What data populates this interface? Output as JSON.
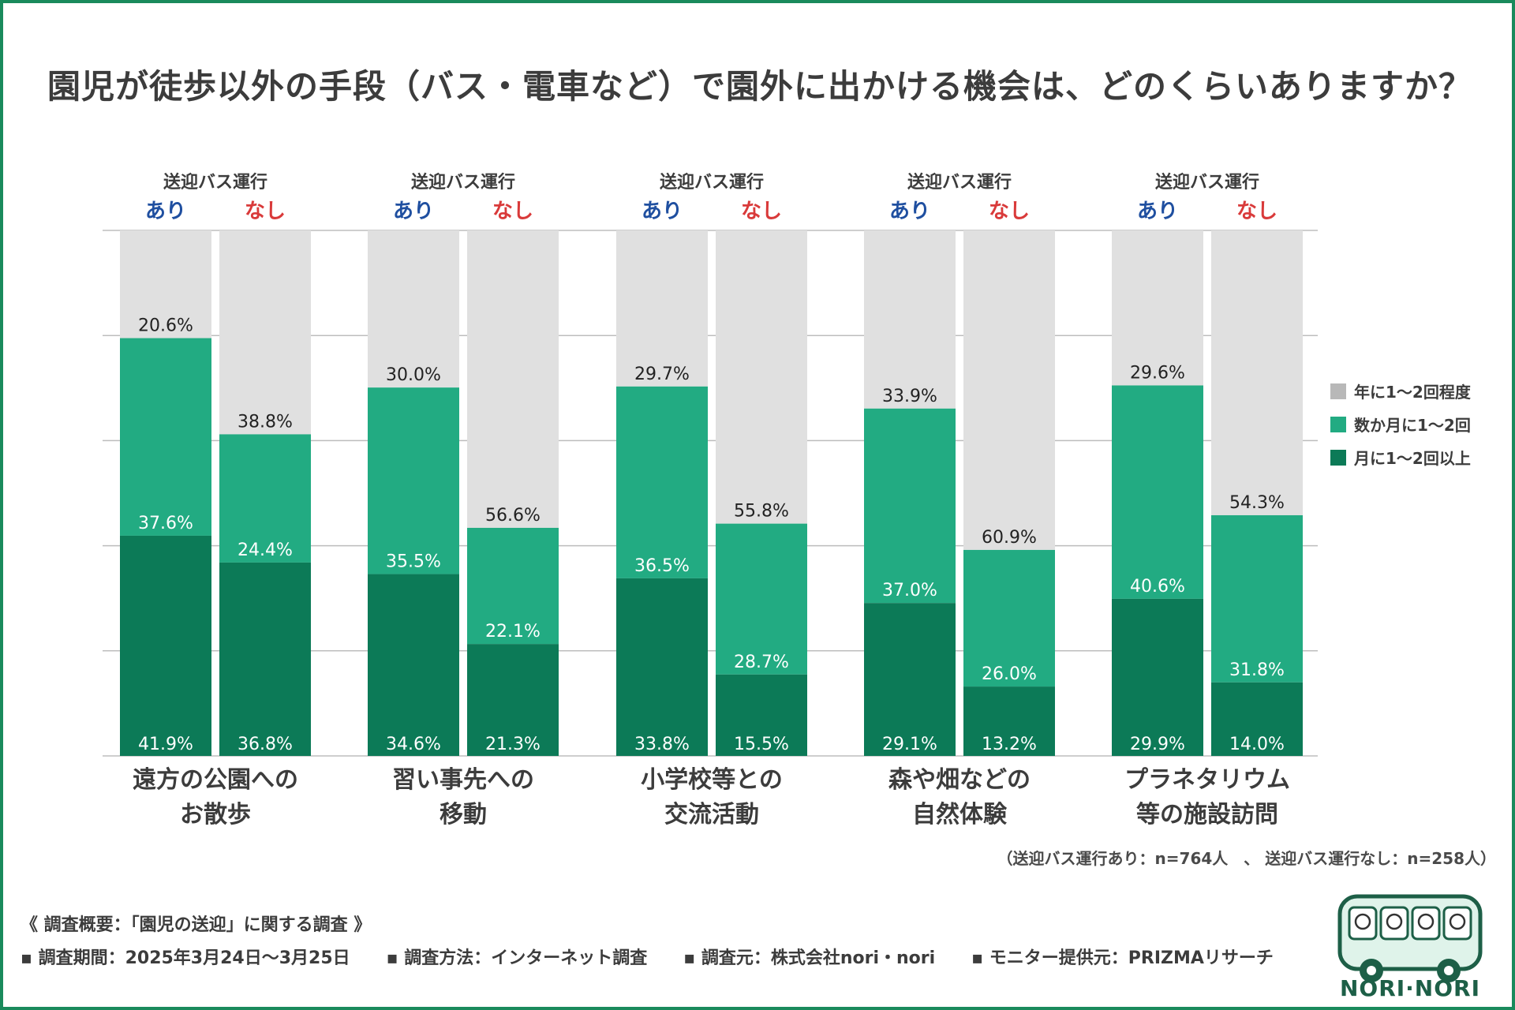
{
  "title": "園児が徒歩以外の手段（バス・電車など）で園外に出かける機会は、どのくらいありますか？",
  "sample_note": "（送迎バス運行あり：n=764人　、 送迎バス運行なし：n=258人）",
  "survey": {
    "heading": "《 調査概要：「園児の送迎」に関する調査 》",
    "period": "調査期間：2025年3月24日〜3月25日",
    "method": "調査方法：インターネット調査",
    "source": "調査元：株式会社nori・nori",
    "monitor": "モニター提供元：PRIZMAリサーチ"
  },
  "logo": {
    "text": "NORI·NORI"
  },
  "colors": {
    "monthly": "#0c7a57",
    "few_months": "#22ab82",
    "yearly": "#e0e0e0",
    "ari": "#1f4fa0",
    "nashi": "#d93a3a",
    "grid": "#bdbdbd"
  },
  "chart_data": {
    "type": "bar",
    "stacked": true,
    "percent": true,
    "ylim": [
      0,
      100
    ],
    "group_header": "送迎バス運行",
    "subgroups": [
      "あり",
      "なし"
    ],
    "legend": [
      "年に1〜2回程度",
      "数か月に1〜2回",
      "月に1〜2回以上"
    ],
    "legend_position": "right",
    "categories": [
      {
        "line1": "遠方の公園への",
        "line2": "お散歩",
        "bars": [
          {
            "monthly": 41.9,
            "few_months": 37.6,
            "yearly": 20.6
          },
          {
            "monthly": 36.8,
            "few_months": 24.4,
            "yearly": 38.8
          }
        ]
      },
      {
        "line1": "習い事先への",
        "line2": "移動",
        "bars": [
          {
            "monthly": 34.6,
            "few_months": 35.5,
            "yearly": 30.0
          },
          {
            "monthly": 21.3,
            "few_months": 22.1,
            "yearly": 56.6
          }
        ]
      },
      {
        "line1": "小学校等との",
        "line2": "交流活動",
        "bars": [
          {
            "monthly": 33.8,
            "few_months": 36.5,
            "yearly": 29.7
          },
          {
            "monthly": 15.5,
            "few_months": 28.7,
            "yearly": 55.8
          }
        ]
      },
      {
        "line1": "森や畑などの",
        "line2": "自然体験",
        "bars": [
          {
            "monthly": 29.1,
            "few_months": 37.0,
            "yearly": 33.9
          },
          {
            "monthly": 13.2,
            "few_months": 26.0,
            "yearly": 60.9
          }
        ]
      },
      {
        "line1": "プラネタリウム",
        "line2": "等の施設訪問",
        "bars": [
          {
            "monthly": 29.9,
            "few_months": 40.6,
            "yearly": 29.6
          },
          {
            "monthly": 14.0,
            "few_months": 31.8,
            "yearly": 54.3
          }
        ]
      }
    ]
  }
}
